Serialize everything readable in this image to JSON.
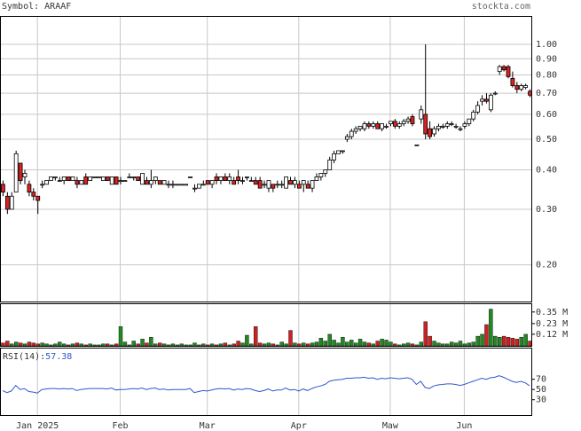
{
  "chart_data": {
    "type": "candlestick",
    "title": "Symbol: ARAAF",
    "source": "stockta.com",
    "log_scale": true,
    "grid": true,
    "up_color": "#ffffff",
    "down_color": "#dd2222",
    "ylim": [
      0.153,
      1.23
    ],
    "yticks": [
      {
        "value": 1,
        "label": "1.00"
      },
      {
        "value": 0.9,
        "label": "0.90"
      },
      {
        "value": 0.8,
        "label": "0.80"
      },
      {
        "value": 0.7,
        "label": "0.70"
      },
      {
        "value": 0.6,
        "label": "0.60"
      },
      {
        "value": 0.5,
        "label": "0.50"
      },
      {
        "value": 0.4,
        "label": "0.40"
      },
      {
        "value": 0.3,
        "label": "0.30"
      },
      {
        "value": 0.2,
        "label": "0.20"
      }
    ],
    "xlim": [
      -0.6,
      121.6
    ],
    "xticks": [
      {
        "value": 8,
        "label": "Jan 2025"
      },
      {
        "value": 27,
        "label": "Feb"
      },
      {
        "value": 47,
        "label": "Mar"
      },
      {
        "value": 68,
        "label": "Apr"
      },
      {
        "value": 89,
        "label": "Maw"
      },
      {
        "value": 106,
        "label": "Jun"
      }
    ],
    "ohlc": [
      [
        0.36,
        0.37,
        0.33,
        0.34
      ],
      [
        0.33,
        0.34,
        0.29,
        0.3
      ],
      [
        0.3,
        0.34,
        0.3,
        0.33
      ],
      [
        0.34,
        0.46,
        0.34,
        0.45
      ],
      [
        0.42,
        0.42,
        0.36,
        0.37
      ],
      [
        0.38,
        0.4,
        0.36,
        0.39
      ],
      [
        0.36,
        0.37,
        0.33,
        0.34
      ],
      [
        0.34,
        0.35,
        0.32,
        0.33
      ],
      [
        0.33,
        0.33,
        0.29,
        0.32
      ],
      [
        0.36,
        0.37,
        0.35,
        0.36
      ],
      [
        0.36,
        0.37,
        0.36,
        0.37
      ],
      [
        0.37,
        0.38,
        0.37,
        0.38
      ],
      [
        0.38,
        0.38,
        0.37,
        0.38
      ],
      [
        0.37,
        0.38,
        0.37,
        0.37
      ],
      [
        0.37,
        0.38,
        0.36,
        0.38
      ],
      [
        0.38,
        0.38,
        0.37,
        0.37
      ],
      [
        0.37,
        0.38,
        0.37,
        0.38
      ],
      [
        0.37,
        0.38,
        0.35,
        0.36
      ],
      [
        0.36,
        0.37,
        0.36,
        0.37
      ],
      [
        0.38,
        0.39,
        0.36,
        0.36
      ],
      [
        0.37,
        0.38,
        0.37,
        0.38
      ],
      [
        0.38,
        0.38,
        0.38,
        0.38
      ],
      [
        0.38,
        0.38,
        0.38,
        0.38
      ],
      [
        0.37,
        0.38,
        0.37,
        0.38
      ],
      [
        0.38,
        0.38,
        0.37,
        0.37
      ],
      [
        0.36,
        0.38,
        0.36,
        0.38
      ],
      [
        0.38,
        0.38,
        0.36,
        0.36
      ],
      [
        0.37,
        0.38,
        0.36,
        0.37
      ],
      [
        0.37,
        0.37,
        0.37,
        0.37
      ],
      [
        0.38,
        0.39,
        0.38,
        0.38
      ],
      [
        0.38,
        0.38,
        0.37,
        0.38
      ],
      [
        0.38,
        0.38,
        0.37,
        0.37
      ],
      [
        0.36,
        0.39,
        0.36,
        0.39
      ],
      [
        0.37,
        0.38,
        0.36,
        0.36
      ],
      [
        0.36,
        0.4,
        0.35,
        0.37
      ],
      [
        0.37,
        0.38,
        0.36,
        0.38
      ],
      [
        0.37,
        0.37,
        0.36,
        0.36
      ],
      [
        0.36,
        0.37,
        0.36,
        0.37
      ],
      [
        0.36,
        0.37,
        0.35,
        0.36
      ],
      [
        0.36,
        0.37,
        0.35,
        0.36
      ],
      [
        0.36,
        0.36,
        0.36,
        0.36
      ],
      [
        0.36,
        0.36,
        0.36,
        0.36
      ],
      [
        0.36,
        0.36,
        0.36,
        0.36
      ],
      [
        0.38,
        0.38,
        0.38,
        0.38
      ],
      [
        0.35,
        0.36,
        0.34,
        0.35
      ],
      [
        0.35,
        0.36,
        0.35,
        0.36
      ],
      [
        0.36,
        0.37,
        0.36,
        0.36
      ],
      [
        0.37,
        0.37,
        0.36,
        0.36
      ],
      [
        0.36,
        0.37,
        0.35,
        0.37
      ],
      [
        0.38,
        0.39,
        0.36,
        0.37
      ],
      [
        0.37,
        0.38,
        0.36,
        0.38
      ],
      [
        0.38,
        0.39,
        0.37,
        0.37
      ],
      [
        0.37,
        0.39,
        0.36,
        0.38
      ],
      [
        0.37,
        0.38,
        0.36,
        0.36
      ],
      [
        0.38,
        0.4,
        0.36,
        0.37
      ],
      [
        0.37,
        0.38,
        0.36,
        0.37
      ],
      [
        0.38,
        0.38,
        0.37,
        0.38
      ],
      [
        0.37,
        0.38,
        0.37,
        0.37
      ],
      [
        0.37,
        0.38,
        0.36,
        0.36
      ],
      [
        0.37,
        0.38,
        0.35,
        0.35
      ],
      [
        0.36,
        0.37,
        0.35,
        0.36
      ],
      [
        0.35,
        0.37,
        0.34,
        0.37
      ],
      [
        0.36,
        0.36,
        0.34,
        0.35
      ],
      [
        0.36,
        0.37,
        0.35,
        0.36
      ],
      [
        0.36,
        0.37,
        0.35,
        0.36
      ],
      [
        0.35,
        0.38,
        0.35,
        0.38
      ],
      [
        0.37,
        0.38,
        0.36,
        0.36
      ],
      [
        0.36,
        0.38,
        0.35,
        0.37
      ],
      [
        0.36,
        0.37,
        0.35,
        0.35
      ],
      [
        0.36,
        0.37,
        0.34,
        0.37
      ],
      [
        0.36,
        0.37,
        0.35,
        0.35
      ],
      [
        0.35,
        0.37,
        0.34,
        0.37
      ],
      [
        0.37,
        0.39,
        0.37,
        0.38
      ],
      [
        0.38,
        0.39,
        0.37,
        0.39
      ],
      [
        0.39,
        0.4,
        0.38,
        0.4
      ],
      [
        0.4,
        0.44,
        0.4,
        0.43
      ],
      [
        0.43,
        0.46,
        0.42,
        0.45
      ],
      [
        0.45,
        0.46,
        0.45,
        0.46
      ],
      [
        0.46,
        0.46,
        0.45,
        0.46
      ],
      [
        0.5,
        0.52,
        0.49,
        0.51
      ],
      [
        0.51,
        0.54,
        0.5,
        0.53
      ],
      [
        0.53,
        0.55,
        0.52,
        0.54
      ],
      [
        0.54,
        0.55,
        0.53,
        0.55
      ],
      [
        0.54,
        0.57,
        0.53,
        0.56
      ],
      [
        0.56,
        0.57,
        0.54,
        0.55
      ],
      [
        0.55,
        0.57,
        0.54,
        0.56
      ],
      [
        0.56,
        0.57,
        0.54,
        0.54
      ],
      [
        0.54,
        0.56,
        0.53,
        0.56
      ],
      [
        0.55,
        0.56,
        0.54,
        0.55
      ],
      [
        0.56,
        0.57,
        0.55,
        0.57
      ],
      [
        0.57,
        0.58,
        0.54,
        0.55
      ],
      [
        0.55,
        0.57,
        0.54,
        0.56
      ],
      [
        0.56,
        0.58,
        0.55,
        0.57
      ],
      [
        0.57,
        0.59,
        0.56,
        0.58
      ],
      [
        0.59,
        0.6,
        0.55,
        0.56
      ],
      [
        0.48,
        0.48,
        0.48,
        0.48
      ],
      [
        0.58,
        0.64,
        0.56,
        0.62
      ],
      [
        0.6,
        1.0,
        0.5,
        0.52
      ],
      [
        0.54,
        0.57,
        0.5,
        0.51
      ],
      [
        0.52,
        0.55,
        0.51,
        0.54
      ],
      [
        0.54,
        0.56,
        0.53,
        0.55
      ],
      [
        0.55,
        0.56,
        0.54,
        0.55
      ],
      [
        0.55,
        0.57,
        0.54,
        0.56
      ],
      [
        0.56,
        0.57,
        0.55,
        0.56
      ],
      [
        0.55,
        0.56,
        0.54,
        0.55
      ],
      [
        0.54,
        0.55,
        0.53,
        0.54
      ],
      [
        0.55,
        0.57,
        0.54,
        0.56
      ],
      [
        0.56,
        0.58,
        0.55,
        0.58
      ],
      [
        0.58,
        0.62,
        0.57,
        0.61
      ],
      [
        0.61,
        0.66,
        0.6,
        0.64
      ],
      [
        0.66,
        0.69,
        0.64,
        0.67
      ],
      [
        0.67,
        0.7,
        0.65,
        0.66
      ],
      [
        0.62,
        0.7,
        0.61,
        0.69
      ],
      [
        0.7,
        0.71,
        0.69,
        0.7
      ],
      [
        0.82,
        0.86,
        0.8,
        0.85
      ],
      [
        0.85,
        0.86,
        0.82,
        0.83
      ],
      [
        0.85,
        0.86,
        0.78,
        0.79
      ],
      [
        0.78,
        0.82,
        0.73,
        0.74
      ],
      [
        0.74,
        0.76,
        0.7,
        0.72
      ],
      [
        0.72,
        0.75,
        0.71,
        0.74
      ],
      [
        0.73,
        0.75,
        0.72,
        0.74
      ],
      [
        0.71,
        0.72,
        0.68,
        0.69
      ]
    ],
    "volume": {
      "up_color": "#228822",
      "down_color": "#cc2222",
      "ylim": [
        0,
        0.44
      ],
      "yticks": [
        {
          "value": 0.35,
          "label": "0.35 M"
        },
        {
          "value": 0.23,
          "label": "0.23 M"
        },
        {
          "value": 0.12,
          "label": "0.12 M"
        }
      ],
      "values": [
        0.03,
        0.05,
        0.02,
        0.04,
        0.03,
        0.02,
        0.04,
        0.03,
        0.02,
        0.03,
        0.02,
        0.01,
        0.02,
        0.04,
        0.02,
        0.01,
        0.02,
        0.03,
        0.02,
        0.01,
        0.02,
        0.01,
        0.01,
        0.02,
        0.02,
        0.01,
        0.02,
        0.2,
        0.04,
        0.01,
        0.05,
        0.02,
        0.07,
        0.03,
        0.09,
        0.02,
        0.03,
        0.02,
        0.01,
        0.02,
        0.01,
        0.02,
        0.01,
        0.01,
        0.03,
        0.01,
        0.02,
        0.01,
        0.02,
        0.01,
        0.02,
        0.03,
        0.01,
        0.02,
        0.05,
        0.03,
        0.11,
        0.02,
        0.2,
        0.03,
        0.02,
        0.03,
        0.02,
        0.01,
        0.04,
        0.02,
        0.16,
        0.03,
        0.02,
        0.03,
        0.02,
        0.03,
        0.04,
        0.08,
        0.05,
        0.12,
        0.06,
        0.03,
        0.09,
        0.04,
        0.06,
        0.03,
        0.07,
        0.04,
        0.03,
        0.02,
        0.05,
        0.07,
        0.06,
        0.04,
        0.02,
        0.01,
        0.02,
        0.03,
        0.02,
        0.01,
        0.04,
        0.25,
        0.1,
        0.05,
        0.03,
        0.02,
        0.02,
        0.04,
        0.03,
        0.05,
        0.02,
        0.03,
        0.04,
        0.1,
        0.12,
        0.22,
        0.38,
        0.1,
        0.09,
        0.1,
        0.09,
        0.08,
        0.07,
        0.09,
        0.12,
        0.05
      ]
    },
    "rsi": {
      "label": "RSI(14):",
      "color": "#3355cc",
      "ylim": [
        0,
        132
      ],
      "yticks": [
        70,
        50,
        30
      ],
      "values": [
        48,
        44,
        47,
        58,
        50,
        52,
        46,
        45,
        43,
        50,
        51,
        52,
        52,
        51,
        52,
        51,
        52,
        48,
        50,
        51,
        52,
        52,
        52,
        52,
        51,
        53,
        49,
        50,
        50,
        51,
        52,
        51,
        53,
        50,
        52,
        53,
        50,
        51,
        49,
        50,
        50,
        50,
        50,
        52,
        44,
        46,
        48,
        47,
        49,
        51,
        52,
        51,
        52,
        49,
        51,
        50,
        52,
        51,
        48,
        46,
        48,
        51,
        47,
        49,
        49,
        53,
        49,
        50,
        47,
        51,
        48,
        52,
        55,
        57,
        60,
        66,
        68,
        69,
        70,
        72,
        72,
        73,
        73,
        74,
        72,
        73,
        70,
        72,
        71,
        73,
        72,
        71,
        72,
        73,
        70,
        60,
        66,
        54,
        52,
        57,
        59,
        60,
        61,
        61,
        60,
        58,
        60,
        63,
        66,
        69,
        72,
        70,
        73,
        74,
        77,
        74,
        70,
        66,
        64,
        66,
        63,
        57.38
      ]
    }
  }
}
